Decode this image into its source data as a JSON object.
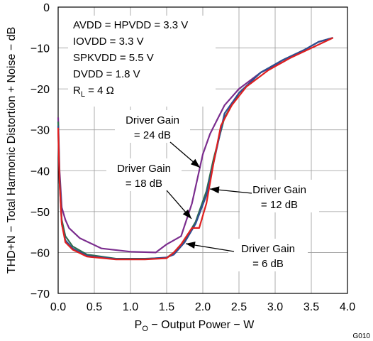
{
  "chart_data": {
    "type": "line",
    "xlabel_prefix": "P",
    "xlabel_sub": "O",
    "xlabel_rest": " − Output Power − W",
    "ylabel": "THD+N − Total Harmonic Distortion + Noise − dB",
    "xlim": [
      0,
      4.0
    ],
    "ylim": [
      -70,
      0
    ],
    "xticks": [
      "0.0",
      "0.5",
      "1.0",
      "1.5",
      "2.0",
      "2.5",
      "3.0",
      "3.5",
      "4.0"
    ],
    "yticks": [
      "0",
      "−10",
      "−20",
      "−30",
      "−40",
      "−50",
      "−60",
      "−70"
    ],
    "grid": true,
    "figure_id": "G010",
    "conditions": [
      {
        "text": "AVDD = HPVDD = 3.3 V"
      },
      {
        "text": "IOVDD = 3.3 V"
      },
      {
        "text": "SPKVDD = 5.5 V"
      },
      {
        "text": "DVDD = 1.8 V"
      },
      {
        "text": "R",
        "sub": "L",
        "rest": "  = 4 Ω"
      }
    ],
    "annotations": [
      {
        "line1": "Driver Gain",
        "line2": "= 24 dB"
      },
      {
        "line1": "Driver Gain",
        "line2": "= 18 dB"
      },
      {
        "line1": "Driver Gain",
        "line2": "= 12 dB"
      },
      {
        "line1": "Driver Gain",
        "line2": "= 6 dB"
      }
    ],
    "series": [
      {
        "color": "#7b2d8e",
        "points": [
          [
            0.0,
            -27
          ],
          [
            0.02,
            -40
          ],
          [
            0.05,
            -49
          ],
          [
            0.1,
            -52
          ],
          [
            0.15,
            -54
          ],
          [
            0.3,
            -56.5
          ],
          [
            0.6,
            -59
          ],
          [
            1.0,
            -59.8
          ],
          [
            1.35,
            -60
          ],
          [
            1.5,
            -58
          ],
          [
            1.7,
            -56
          ],
          [
            1.85,
            -48
          ],
          [
            2.0,
            -36
          ],
          [
            2.1,
            -31
          ],
          [
            2.2,
            -27.5
          ],
          [
            2.3,
            -24
          ],
          [
            2.5,
            -20
          ],
          [
            2.8,
            -16
          ],
          [
            3.1,
            -13.5
          ],
          [
            3.4,
            -10.5
          ],
          [
            3.6,
            -8.5
          ],
          [
            3.8,
            -7.5
          ]
        ]
      },
      {
        "color": "#2e6e4e",
        "points": [
          [
            0.0,
            -28
          ],
          [
            0.02,
            -42
          ],
          [
            0.05,
            -52
          ],
          [
            0.1,
            -56
          ],
          [
            0.2,
            -58.5
          ],
          [
            0.4,
            -60.5
          ],
          [
            0.8,
            -61.5
          ],
          [
            1.2,
            -61.5
          ],
          [
            1.5,
            -61.3
          ],
          [
            1.6,
            -60
          ],
          [
            1.75,
            -57
          ],
          [
            1.9,
            -52.5
          ],
          [
            2.05,
            -45
          ],
          [
            2.15,
            -37
          ],
          [
            2.3,
            -27
          ],
          [
            2.5,
            -21
          ],
          [
            2.8,
            -16
          ],
          [
            3.1,
            -13
          ],
          [
            3.4,
            -10.5
          ],
          [
            3.6,
            -8.5
          ],
          [
            3.8,
            -7.5
          ]
        ]
      },
      {
        "color": "#2f4e93",
        "points": [
          [
            0.0,
            -29
          ],
          [
            0.02,
            -43
          ],
          [
            0.05,
            -53
          ],
          [
            0.1,
            -57
          ],
          [
            0.2,
            -59
          ],
          [
            0.4,
            -60.8
          ],
          [
            0.8,
            -61.6
          ],
          [
            1.2,
            -61.6
          ],
          [
            1.5,
            -61.2
          ],
          [
            1.6,
            -60.5
          ],
          [
            1.75,
            -57.5
          ],
          [
            1.9,
            -53
          ],
          [
            2.05,
            -46
          ],
          [
            2.2,
            -34
          ],
          [
            2.3,
            -26
          ],
          [
            2.5,
            -21
          ],
          [
            2.8,
            -16
          ],
          [
            3.1,
            -13
          ],
          [
            3.4,
            -10.5
          ],
          [
            3.6,
            -8.5
          ],
          [
            3.8,
            -7.5
          ]
        ]
      },
      {
        "color": "#e02020",
        "points": [
          [
            0.0,
            -29.5
          ],
          [
            0.02,
            -43
          ],
          [
            0.05,
            -53
          ],
          [
            0.1,
            -57.5
          ],
          [
            0.2,
            -59.3
          ],
          [
            0.4,
            -61
          ],
          [
            0.8,
            -61.7
          ],
          [
            1.2,
            -61.7
          ],
          [
            1.5,
            -61.4
          ],
          [
            1.6,
            -60
          ],
          [
            1.7,
            -58
          ],
          [
            1.85,
            -54
          ],
          [
            1.95,
            -54
          ],
          [
            2.05,
            -48
          ],
          [
            2.15,
            -38
          ],
          [
            2.25,
            -29
          ],
          [
            2.4,
            -24
          ],
          [
            2.6,
            -19.5
          ],
          [
            2.9,
            -15.5
          ],
          [
            3.2,
            -12.5
          ],
          [
            3.5,
            -10
          ],
          [
            3.8,
            -7.5
          ]
        ]
      }
    ]
  }
}
